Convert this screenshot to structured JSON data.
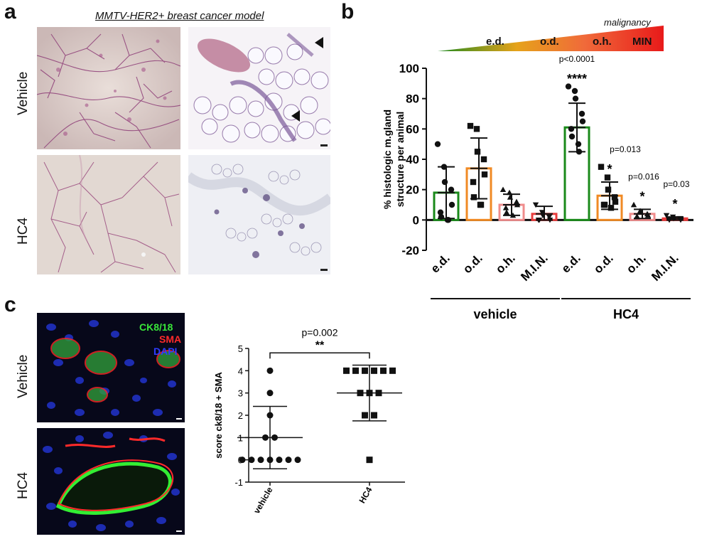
{
  "panel_letters": {
    "a": "a",
    "b": "b",
    "c": "c"
  },
  "panel_a": {
    "title": "MMTV-HER2+ breast cancer model",
    "rows": [
      "Vehicle",
      "HC4"
    ]
  },
  "panel_c_images": {
    "rows": [
      "Vehicle",
      "HC4"
    ],
    "stain_labels": [
      {
        "text": "CK8/18",
        "color": "#39e639"
      },
      {
        "text": "SMA",
        "color": "#ff2a2a"
      },
      {
        "text": "DAPI",
        "color": "#2f3cff"
      }
    ]
  },
  "malignancy_bar": {
    "label": "malignancy",
    "stages": [
      "e.d.",
      "o.d.",
      "o.h.",
      "MIN"
    ]
  },
  "chart_data": [
    {
      "type": "bar",
      "panel": "b",
      "ylabel": "% histologic m.gland structure per animal",
      "ylim": [
        -20,
        100
      ],
      "yticks": [
        -20,
        0,
        20,
        40,
        60,
        80,
        100
      ],
      "categories": [
        "e.d.",
        "o.d.",
        "o.h.",
        "M.I.N.",
        "e.d.",
        "o.d.",
        "o.h.",
        "M.I.N."
      ],
      "groups": [
        {
          "label": "vehicle",
          "category_indices": [
            0,
            1,
            2,
            3
          ]
        },
        {
          "label": "HC4",
          "category_indices": [
            4,
            5,
            6,
            7
          ]
        }
      ],
      "values": [
        18,
        34,
        10,
        4,
        61,
        16,
        4,
        1
      ],
      "sd": [
        17,
        20,
        7,
        5,
        16,
        9,
        3,
        1
      ],
      "bar_colors": [
        "#1a8a1a",
        "#f08a24",
        "#f08c8c",
        "#e83c3c",
        "#1a8a1a",
        "#f08a24",
        "#f08c8c",
        "#e83c3c"
      ],
      "markers": [
        "circle",
        "square",
        "triangle",
        "triangle-down",
        "circle",
        "square",
        "triangle",
        "triangle-down"
      ],
      "points": [
        [
          50,
          35,
          25,
          20,
          10,
          5,
          2,
          0,
          0
        ],
        [
          62,
          60,
          45,
          40,
          30,
          25,
          15,
          10,
          10
        ],
        [
          20,
          18,
          15,
          12,
          10,
          8,
          5,
          3
        ],
        [
          10,
          5,
          3,
          2,
          0,
          0,
          0
        ],
        [
          88,
          85,
          80,
          70,
          65,
          60,
          55,
          50,
          45
        ],
        [
          35,
          28,
          20,
          15,
          12,
          10,
          10,
          8
        ],
        [
          10,
          6,
          5,
          4,
          3,
          2,
          2
        ],
        [
          3,
          2,
          1,
          1,
          0,
          0
        ]
      ],
      "annotations": [
        {
          "category_index": 4,
          "p": "p<0.0001",
          "stars": "****"
        },
        {
          "category_index": 5,
          "p": "p=0.013",
          "stars": "*"
        },
        {
          "category_index": 6,
          "p": "p=0.016",
          "stars": "*"
        },
        {
          "category_index": 7,
          "p": "p=0.03",
          "stars": "*"
        }
      ]
    },
    {
      "type": "scatter",
      "panel": "c",
      "ylabel": "score ck8/18 + SMA",
      "ylim": [
        -1,
        5
      ],
      "yticks": [
        -1,
        0,
        1,
        2,
        3,
        4,
        5
      ],
      "categories": [
        "vehicle",
        "HC4"
      ],
      "series": [
        {
          "name": "vehicle",
          "marker": "circle",
          "values": [
            4,
            3,
            2,
            1,
            1,
            0,
            0,
            0,
            0,
            0,
            0,
            0
          ],
          "mean": 1.0,
          "sd": 1.4
        },
        {
          "name": "HC4",
          "marker": "square",
          "values": [
            4,
            4,
            4,
            4,
            4,
            4,
            3,
            3,
            3,
            2,
            2,
            0
          ],
          "mean": 3.0,
          "sd": 1.25
        }
      ],
      "significance": {
        "p": "p=0.002",
        "stars": "**"
      }
    }
  ]
}
